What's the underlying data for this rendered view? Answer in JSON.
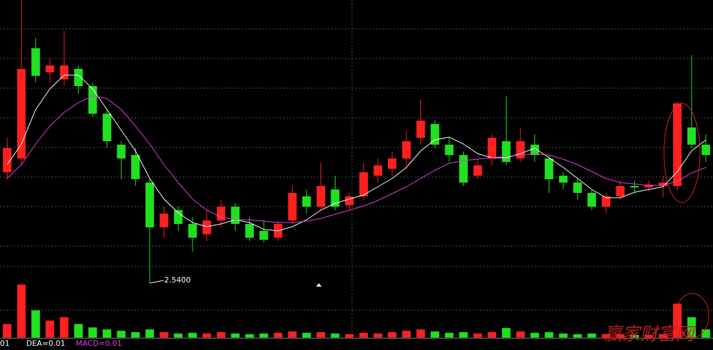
{
  "chart_data": {
    "type": "candlestick",
    "ohlc": [
      [
        3.345,
        3.595,
        3.295,
        3.52
      ],
      [
        3.445,
        4.595,
        3.395,
        4.095
      ],
      [
        4.245,
        4.32,
        3.995,
        4.045
      ],
      [
        4.07,
        4.17,
        3.995,
        4.12
      ],
      [
        4.02,
        4.37,
        3.97,
        4.12
      ],
      [
        4.095,
        4.12,
        3.915,
        3.97
      ],
      [
        3.97,
        3.995,
        3.745,
        3.77
      ],
      [
        3.77,
        3.795,
        3.52,
        3.57
      ],
      [
        3.545,
        3.57,
        3.295,
        3.445
      ],
      [
        3.47,
        3.52,
        3.245,
        3.295
      ],
      [
        3.27,
        3.295,
        2.54,
        2.945
      ],
      [
        2.945,
        3.095,
        2.87,
        3.045
      ],
      [
        3.07,
        3.095,
        2.92,
        2.97
      ],
      [
        2.97,
        3.02,
        2.77,
        2.87
      ],
      [
        2.895,
        3.07,
        2.845,
        2.995
      ],
      [
        2.995,
        3.145,
        2.945,
        3.095
      ],
      [
        3.095,
        3.12,
        2.92,
        2.97
      ],
      [
        2.97,
        3.02,
        2.845,
        2.87
      ],
      [
        2.92,
        2.995,
        2.835,
        2.855
      ],
      [
        2.87,
        2.995,
        2.845,
        2.97
      ],
      [
        2.995,
        3.245,
        2.97,
        3.195
      ],
      [
        3.17,
        3.22,
        3.045,
        3.095
      ],
      [
        3.095,
        3.415,
        3.07,
        3.245
      ],
      [
        3.22,
        3.32,
        3.07,
        3.095
      ],
      [
        3.105,
        3.195,
        3.07,
        3.17
      ],
      [
        3.17,
        3.415,
        3.145,
        3.345
      ],
      [
        3.32,
        3.445,
        3.27,
        3.395
      ],
      [
        3.37,
        3.495,
        3.32,
        3.445
      ],
      [
        3.445,
        3.645,
        3.395,
        3.57
      ],
      [
        3.595,
        3.87,
        3.545,
        3.72
      ],
      [
        3.695,
        3.72,
        3.52,
        3.545
      ],
      [
        3.545,
        3.595,
        3.42,
        3.47
      ],
      [
        3.47,
        3.495,
        3.245,
        3.27
      ],
      [
        3.32,
        3.445,
        3.295,
        3.395
      ],
      [
        3.445,
        3.62,
        3.395,
        3.595
      ],
      [
        3.57,
        3.895,
        3.395,
        3.42
      ],
      [
        3.445,
        3.67,
        3.42,
        3.57
      ],
      [
        3.545,
        3.62,
        3.42,
        3.47
      ],
      [
        3.445,
        3.47,
        3.195,
        3.295
      ],
      [
        3.32,
        3.345,
        3.22,
        3.27
      ],
      [
        3.27,
        3.295,
        3.145,
        3.195
      ],
      [
        3.195,
        3.22,
        3.07,
        3.095
      ],
      [
        3.095,
        3.195,
        3.045,
        3.17
      ],
      [
        3.17,
        3.285,
        3.145,
        3.245
      ],
      [
        3.245,
        3.285,
        3.195,
        3.235
      ],
      [
        3.235,
        3.285,
        3.205,
        3.255
      ],
      [
        3.245,
        3.32,
        3.165,
        3.27
      ],
      [
        3.245,
        3.855,
        3.215,
        3.845
      ],
      [
        3.67,
        4.195,
        3.52,
        3.545
      ],
      [
        3.545,
        3.62,
        3.42,
        3.47
      ]
    ],
    "up_color": "#ff2020",
    "down_color": "#20e020",
    "ylim": [
      2.54,
      4.595
    ],
    "low_label": "2.5400",
    "ma_lines": [
      {
        "color": "#ffffff",
        "values": [
          3.4,
          3.55,
          3.8,
          3.95,
          4.05,
          4.05,
          3.95,
          3.8,
          3.65,
          3.5,
          3.3,
          3.15,
          3.05,
          2.98,
          2.95,
          2.97,
          3.0,
          2.98,
          2.93,
          2.92,
          2.95,
          3.0,
          3.07,
          3.12,
          3.15,
          3.18,
          3.24,
          3.3,
          3.38,
          3.5,
          3.58,
          3.6,
          3.55,
          3.48,
          3.45,
          3.45,
          3.48,
          3.52,
          3.45,
          3.38,
          3.3,
          3.22,
          3.16,
          3.16,
          3.2,
          3.22,
          3.24,
          3.35,
          3.5,
          3.58
        ]
      },
      {
        "color": "#e040e0",
        "values": [
          3.3,
          3.4,
          3.55,
          3.68,
          3.78,
          3.85,
          3.9,
          3.88,
          3.8,
          3.68,
          3.55,
          3.4,
          3.27,
          3.15,
          3.07,
          3.02,
          3.0,
          3.0,
          2.99,
          2.98,
          2.98,
          2.99,
          3.01,
          3.04,
          3.07,
          3.1,
          3.14,
          3.19,
          3.24,
          3.3,
          3.36,
          3.41,
          3.43,
          3.44,
          3.45,
          3.46,
          3.47,
          3.48,
          3.47,
          3.44,
          3.4,
          3.35,
          3.3,
          3.27,
          3.26,
          3.25,
          3.25,
          3.28,
          3.34,
          3.38
        ]
      }
    ],
    "volume": [
      20,
      78,
      40,
      25,
      30,
      20,
      15,
      12,
      10,
      8,
      12,
      8,
      6,
      7,
      6,
      8,
      6,
      5,
      6,
      7,
      9,
      7,
      8,
      6,
      5,
      7,
      6,
      8,
      10,
      12,
      9,
      7,
      8,
      6,
      8,
      14,
      9,
      7,
      8,
      6,
      5,
      6,
      5,
      5,
      4,
      4,
      5,
      50,
      30,
      12
    ],
    "vlim": [
      0,
      80
    ],
    "indicators": [
      "01",
      "DEA=0.01",
      "MACD=0.01"
    ],
    "watermark": "赢家财富网"
  }
}
